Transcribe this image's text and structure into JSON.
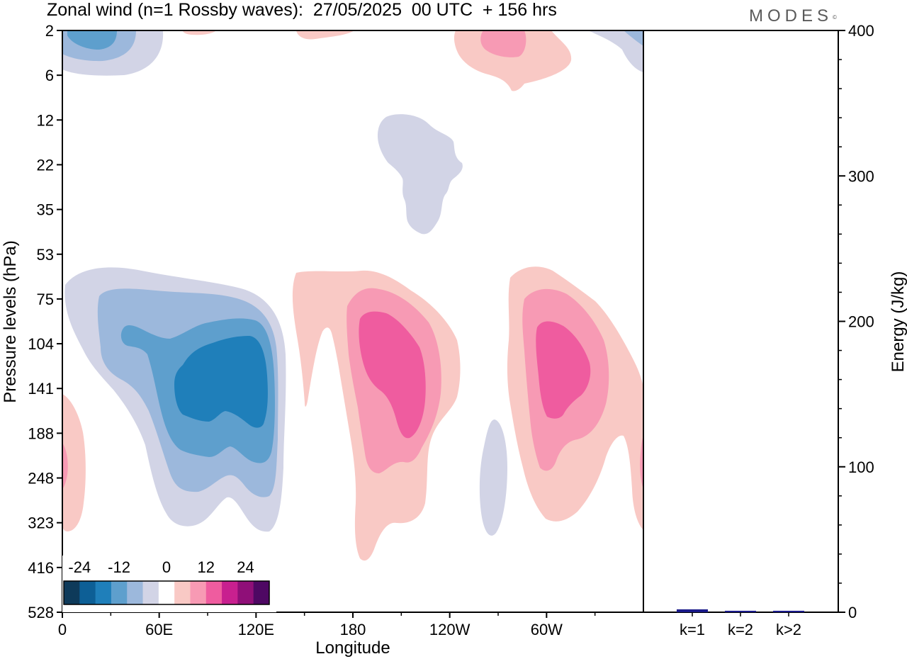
{
  "title": "Zonal wind (n=1 Rossby waves):  27/05/2025  00 UTC  + 156 hrs",
  "logo": "MODES",
  "chart_data": [
    {
      "type": "heatmap",
      "title": "Zonal wind (n=1 Rossby waves):  27/05/2025  00 UTC  + 156 hrs",
      "xlabel": "Longitude",
      "ylabel": "Pressure levels (hPa)",
      "x_ticks": [
        "0",
        "60E",
        "120E",
        "180",
        "120W",
        "60W"
      ],
      "y_ticks": [
        "2",
        "6",
        "12",
        "22",
        "35",
        "53",
        "75",
        "104",
        "141",
        "188",
        "248",
        "323",
        "416",
        "528"
      ],
      "colorbar": {
        "tick_labels": [
          "-24",
          "-12",
          "0",
          "12",
          "24"
        ],
        "colors": [
          "#0e3a5a",
          "#0d5f96",
          "#1f7fba",
          "#5e9fcd",
          "#9cb8dc",
          "#d2d4e6",
          "#ffffff",
          "#f9c9c5",
          "#f79ab4",
          "#ef5c9f",
          "#c8208f",
          "#8f0f78",
          "#4e0863"
        ]
      },
      "features": [
        {
          "sign": "negative",
          "peak": -18,
          "lon": 110,
          "level_hpa": 141
        },
        {
          "sign": "negative",
          "peak": -9,
          "lon": 20,
          "level_hpa": 2
        },
        {
          "sign": "negative",
          "peak": -3,
          "lon": 205,
          "level_hpa": 22
        },
        {
          "sign": "negative",
          "peak": -3,
          "lon": 226,
          "level_hpa": 248
        },
        {
          "sign": "positive",
          "peak": 15,
          "lon": 200,
          "level_hpa": 141
        },
        {
          "sign": "positive",
          "peak": 15,
          "lon": 290,
          "level_hpa": 141
        },
        {
          "sign": "positive",
          "peak": 9,
          "lon": 245,
          "level_hpa": 2
        },
        {
          "sign": "positive",
          "peak": 9,
          "lon": 0,
          "level_hpa": 248
        }
      ]
    },
    {
      "type": "bar",
      "ylabel": "Energy (J/kg)",
      "categories": [
        "k=1",
        "k=2",
        "k>2"
      ],
      "values": [
        2,
        1,
        1
      ],
      "ylim": [
        0,
        400
      ],
      "y_ticks": [
        "0",
        "100",
        "200",
        "300",
        "400"
      ],
      "bar_color": "#1a1a8a"
    }
  ]
}
